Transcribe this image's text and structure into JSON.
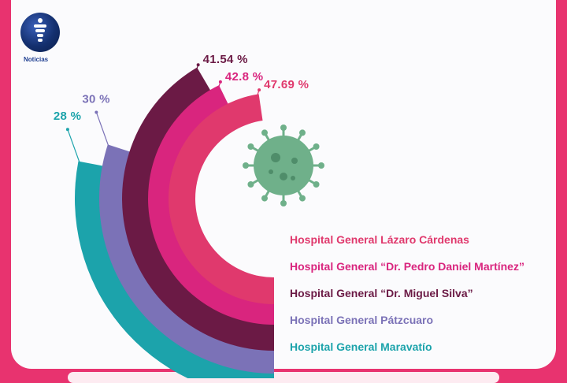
{
  "logo": {
    "text": "Noticias"
  },
  "chart_data": {
    "type": "radial-bar",
    "title": "",
    "series": [
      {
        "name": "Hospital General Lázaro Cárdenas",
        "value": 47.69,
        "label": "47.69 %",
        "color": "#e0396d"
      },
      {
        "name": "Hospital General “Dr. Pedro Daniel Martínez”",
        "value": 42.8,
        "label": "42.8 %",
        "color": "#d9257e"
      },
      {
        "name": "Hospital General “Dr. Miguel Silva”",
        "value": 41.54,
        "label": "41.54 %",
        "color": "#6b1a45"
      },
      {
        "name": "Hospital General Pátzcuaro",
        "value": 30,
        "label": "30 %",
        "color": "#7b72b7"
      },
      {
        "name": "Hospital General Maravatío",
        "value": 28,
        "label": "28 %",
        "color": "#1ca3ab"
      }
    ],
    "virus_color": "#6fb08a"
  }
}
